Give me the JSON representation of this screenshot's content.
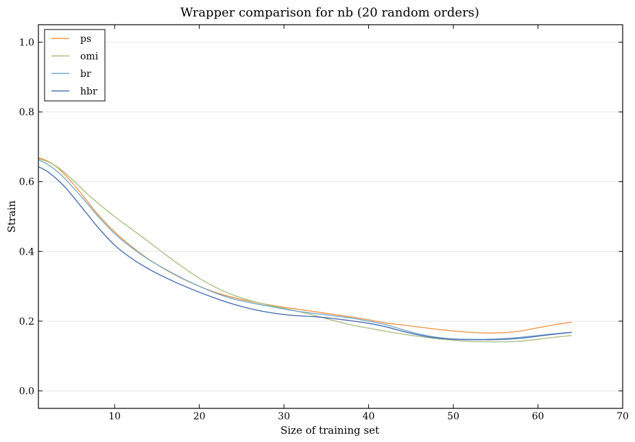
{
  "chart_data": {
    "type": "line",
    "title": "Wrapper comparison for nb (20 random orders)",
    "xlabel": "Size of training set",
    "ylabel": "Strain",
    "xlim": [
      1,
      70
    ],
    "ylim": [
      -0.05,
      1.05
    ],
    "xticks": [
      10,
      20,
      30,
      40,
      50,
      60,
      70
    ],
    "xtick_labels": [
      "10",
      "20",
      "30",
      "40",
      "50",
      "60",
      "70"
    ],
    "yticks": [
      0.0,
      0.2,
      0.4,
      0.6,
      0.8,
      1.0
    ],
    "ytick_labels": [
      "0.0",
      "0.2",
      "0.4",
      "0.6",
      "0.8",
      "1.0"
    ],
    "grid": "horizontal",
    "legend_position": "top-left",
    "x": [
      1,
      2,
      3,
      4,
      5,
      6,
      7,
      8,
      10,
      12,
      14,
      16,
      18,
      20,
      22,
      24,
      26,
      28,
      30,
      32,
      34,
      36,
      38,
      40,
      42,
      44,
      46,
      48,
      50,
      52,
      54,
      56,
      58,
      60,
      62,
      64
    ],
    "series": [
      {
        "name": "ps",
        "color": "#f0974a",
        "values": [
          0.669,
          0.66,
          0.645,
          0.623,
          0.597,
          0.568,
          0.537,
          0.507,
          0.456,
          0.414,
          0.378,
          0.348,
          0.322,
          0.3,
          0.282,
          0.268,
          0.257,
          0.248,
          0.24,
          0.233,
          0.226,
          0.219,
          0.212,
          0.204,
          0.195,
          0.189,
          0.183,
          0.177,
          0.172,
          0.168,
          0.166,
          0.167,
          0.172,
          0.181,
          0.19,
          0.197
        ]
      },
      {
        "name": "omi",
        "color": "#a8c080",
        "values": [
          0.666,
          0.658,
          0.646,
          0.628,
          0.606,
          0.583,
          0.56,
          0.539,
          0.5,
          0.464,
          0.428,
          0.391,
          0.356,
          0.323,
          0.296,
          0.275,
          0.259,
          0.247,
          0.237,
          0.226,
          0.214,
          0.201,
          0.189,
          0.18,
          0.171,
          0.163,
          0.156,
          0.15,
          0.145,
          0.142,
          0.141,
          0.141,
          0.143,
          0.148,
          0.154,
          0.159
        ]
      },
      {
        "name": "br",
        "color": "#74a8cc",
        "values": [
          0.663,
          0.651,
          0.634,
          0.612,
          0.586,
          0.559,
          0.531,
          0.502,
          0.451,
          0.411,
          0.377,
          0.349,
          0.323,
          0.3,
          0.28,
          0.264,
          0.253,
          0.244,
          0.235,
          0.227,
          0.221,
          0.215,
          0.209,
          0.2,
          0.19,
          0.176,
          0.163,
          0.154,
          0.149,
          0.148,
          0.148,
          0.15,
          0.154,
          0.159,
          0.164,
          0.168
        ]
      },
      {
        "name": "hbr",
        "color": "#4a6db4",
        "values": [
          0.643,
          0.63,
          0.611,
          0.588,
          0.56,
          0.53,
          0.5,
          0.47,
          0.418,
          0.38,
          0.35,
          0.325,
          0.303,
          0.283,
          0.265,
          0.249,
          0.236,
          0.226,
          0.219,
          0.215,
          0.212,
          0.207,
          0.201,
          0.194,
          0.184,
          0.171,
          0.16,
          0.152,
          0.148,
          0.147,
          0.147,
          0.148,
          0.151,
          0.157,
          0.163,
          0.168
        ]
      }
    ]
  }
}
